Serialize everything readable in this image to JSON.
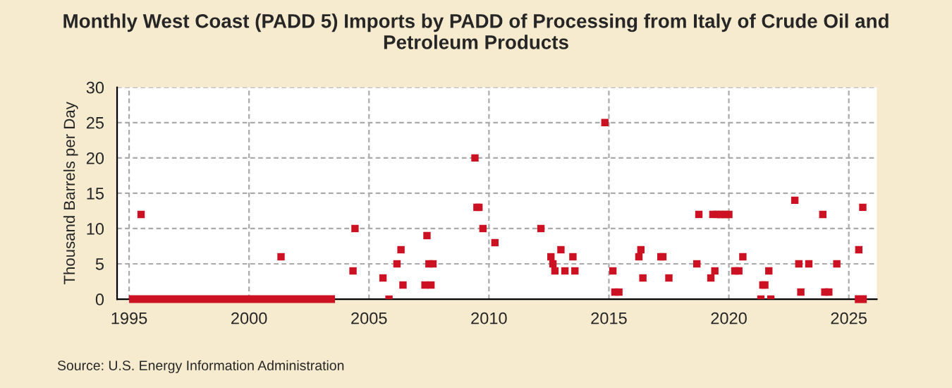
{
  "chart_data": {
    "type": "scatter",
    "title": "Monthly West Coast (PADD 5) Imports by PADD of Processing from Italy of Crude Oil and\nPetroleum Products",
    "ylabel": "Thousand Barrels per Day",
    "annotations": [
      "Source: U.S. Energy Information Administration"
    ],
    "xlim": [
      "1994-07",
      "2026-03"
    ],
    "xticks": [
      {
        "value": "1995-01",
        "label": "1995"
      },
      {
        "value": "2000-01",
        "label": "2000"
      },
      {
        "value": "2005-01",
        "label": "2005"
      },
      {
        "value": "2010-01",
        "label": "2010"
      },
      {
        "value": "2015-01",
        "label": "2015"
      },
      {
        "value": "2020-01",
        "label": "2020"
      },
      {
        "value": "2025-01",
        "label": "2025"
      }
    ],
    "ylim": [
      0,
      30
    ],
    "yticks": [
      0,
      5,
      10,
      15,
      20,
      25,
      30
    ],
    "grid": true,
    "marker": "square",
    "series": [
      {
        "type": "line",
        "marker": "none",
        "color": "#cc1122",
        "x": [
          "1995-01",
          "2003-08"
        ],
        "values": [
          0,
          0
        ]
      },
      {
        "type": "line",
        "marker": "none",
        "color": "#cc1122",
        "x": [
          "2025-04",
          "2025-10"
        ],
        "values": [
          0,
          0
        ]
      },
      {
        "color": "#cc1122",
        "x": [
          "1995-07",
          "2001-05",
          "2004-05",
          "2004-06",
          "2005-08",
          "2005-11",
          "2006-03",
          "2006-05",
          "2006-06",
          "2007-05",
          "2007-06",
          "2007-07",
          "2007-08",
          "2007-09",
          "2009-06",
          "2009-07",
          "2009-08",
          "2009-10",
          "2010-04",
          "2012-03",
          "2012-08",
          "2012-09",
          "2012-10",
          "2013-01",
          "2013-03",
          "2013-07",
          "2013-08",
          "2014-11",
          "2015-03",
          "2015-04",
          "2015-06",
          "2016-04",
          "2016-05",
          "2016-06",
          "2017-03",
          "2017-04",
          "2017-07",
          "2018-09",
          "2018-10",
          "2019-04",
          "2019-05",
          "2019-06",
          "2019-07",
          "2019-09",
          "2019-11",
          "2020-01",
          "2020-04",
          "2020-06",
          "2020-08",
          "2021-05",
          "2021-06",
          "2021-07",
          "2021-09",
          "2021-10",
          "2022-10",
          "2022-12",
          "2023-01",
          "2023-05",
          "2023-12",
          "2024-01",
          "2024-03",
          "2024-07",
          "2025-06",
          "2025-08"
        ],
        "values": [
          12,
          6,
          4,
          10,
          3,
          0,
          5,
          7,
          2,
          2,
          9,
          5,
          2,
          5,
          20,
          13,
          13,
          10,
          8,
          10,
          6,
          5,
          4,
          7,
          4,
          6,
          4,
          25,
          4,
          1,
          1,
          6,
          7,
          3,
          6,
          6,
          3,
          5,
          12,
          3,
          12,
          4,
          12,
          12,
          12,
          12,
          4,
          4,
          6,
          0,
          2,
          2,
          4,
          0,
          14,
          5,
          1,
          5,
          12,
          1,
          1,
          5,
          7,
          13
        ]
      }
    ]
  }
}
